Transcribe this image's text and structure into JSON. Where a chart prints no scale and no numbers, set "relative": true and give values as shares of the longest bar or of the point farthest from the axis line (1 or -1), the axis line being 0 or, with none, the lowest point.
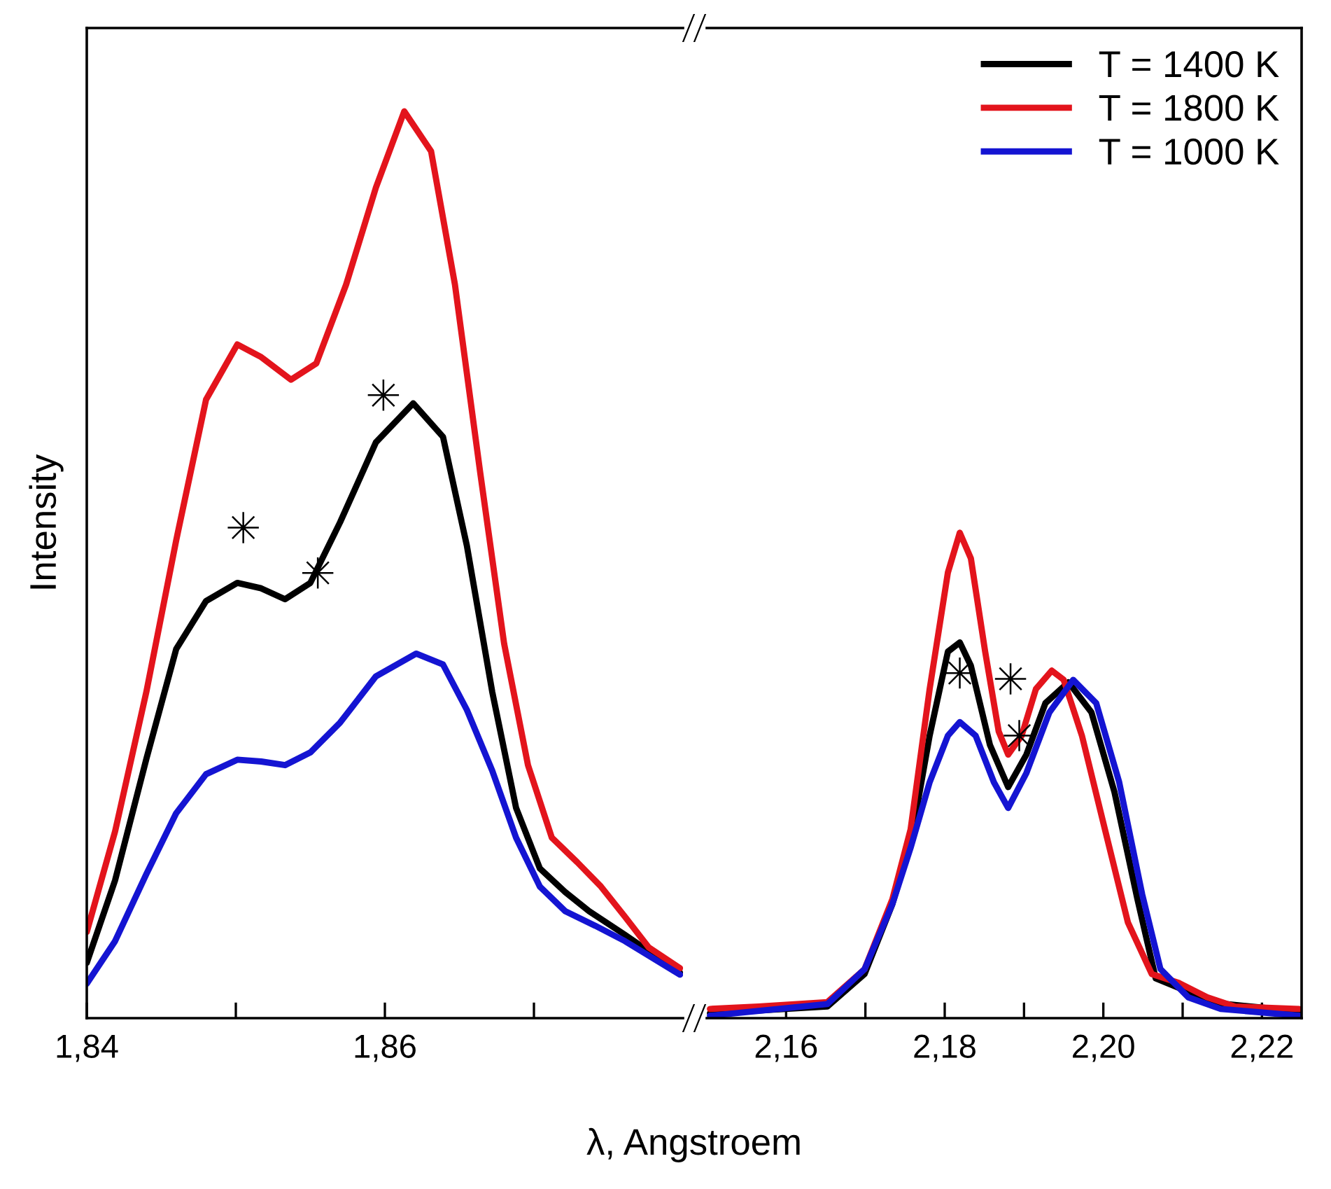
{
  "chart_data": [
    {
      "type": "line",
      "relative": true,
      "ylabel": "Intensity",
      "xlabel": "λ, Angstroem",
      "xlim": [
        1.84,
        1.88
      ],
      "xticks": [
        {
          "value": 1.84,
          "label": "1,84"
        },
        {
          "value": 1.85,
          "label": null
        },
        {
          "value": 1.86,
          "label": "1,86"
        },
        {
          "value": 1.87,
          "label": null
        }
      ],
      "line_style": "solid",
      "marker": "none",
      "series": [
        {
          "color": "#000000",
          "x": [
            1.84,
            1.8419,
            1.844,
            1.846,
            1.848,
            1.8501,
            1.8517,
            1.8533,
            1.855,
            1.857,
            1.8594,
            1.8619,
            1.8639,
            1.8655,
            1.8672,
            1.8688,
            1.8704,
            1.8721,
            1.8737,
            1.8761,
            1.8798
          ],
          "values": [
            0.061,
            0.152,
            0.286,
            0.407,
            0.46,
            0.48,
            0.474,
            0.462,
            0.48,
            0.547,
            0.635,
            0.678,
            0.641,
            0.521,
            0.36,
            0.232,
            0.165,
            0.139,
            0.118,
            0.092,
            0.05
          ]
        },
        {
          "color": "#e3141c",
          "x": [
            1.84,
            1.8419,
            1.844,
            1.846,
            1.848,
            1.8501,
            1.8517,
            1.8537,
            1.8554,
            1.8574,
            1.8594,
            1.8613,
            1.8631,
            1.8647,
            1.8664,
            1.868,
            1.8696,
            1.8712,
            1.8729,
            1.8745,
            1.8761,
            1.8777,
            1.8798
          ],
          "values": [
            0.095,
            0.206,
            0.36,
            0.527,
            0.682,
            0.743,
            0.729,
            0.704,
            0.722,
            0.809,
            0.916,
            1,
            0.956,
            0.809,
            0.601,
            0.413,
            0.279,
            0.199,
            0.172,
            0.145,
            0.112,
            0.078,
            0.055
          ]
        },
        {
          "color": "#1414d2",
          "x": [
            1.84,
            1.8419,
            1.844,
            1.846,
            1.848,
            1.8501,
            1.8517,
            1.8533,
            1.855,
            1.857,
            1.8594,
            1.8621,
            1.8639,
            1.8655,
            1.8672,
            1.8688,
            1.8704,
            1.8721,
            1.8741,
            1.8761,
            1.8798
          ],
          "values": [
            0.038,
            0.085,
            0.159,
            0.226,
            0.269,
            0.285,
            0.283,
            0.279,
            0.293,
            0.326,
            0.377,
            0.402,
            0.39,
            0.34,
            0.273,
            0.199,
            0.145,
            0.118,
            0.102,
            0.085,
            0.048
          ]
        },
        {
          "type": "scatter",
          "marker": "star",
          "color": "#000000",
          "x": [
            1.8505,
            1.8555,
            1.8599
          ],
          "values": [
            0.541,
            0.491,
            0.687
          ]
        }
      ]
    },
    {
      "type": "line",
      "relative": true,
      "xlim": [
        2.15,
        2.225
      ],
      "xticks": [
        {
          "value": 2.16,
          "label": "2,16"
        },
        {
          "value": 2.17,
          "label": null
        },
        {
          "value": 2.18,
          "label": "2,18"
        },
        {
          "value": 2.19,
          "label": null
        },
        {
          "value": 2.2,
          "label": "2,20"
        },
        {
          "value": 2.21,
          "label": null
        },
        {
          "value": 2.22,
          "label": "2,22"
        }
      ],
      "legend": "top right",
      "line_style": "solid",
      "marker": "none",
      "series": [
        {
          "name": "T = 1400 K",
          "color": "#000000",
          "x": [
            2.1504,
            2.1652,
            2.1699,
            2.1734,
            2.1757,
            2.1781,
            2.1804,
            2.1819,
            2.1833,
            2.1857,
            2.188,
            2.1903,
            2.1927,
            2.1956,
            2.1985,
            2.2014,
            2.2043,
            2.2066,
            2.2096,
            2.2131,
            2.2247
          ],
          "values": [
            0.01,
            0.024,
            0.091,
            0.235,
            0.361,
            0.582,
            0.755,
            0.774,
            0.726,
            0.563,
            0.476,
            0.543,
            0.649,
            0.692,
            0.63,
            0.466,
            0.245,
            0.082,
            0.062,
            0.033,
            0.014
          ]
        },
        {
          "name": "T = 1800 K",
          "color": "#e3141c",
          "x": [
            2.1504,
            2.1565,
            2.1652,
            2.1699,
            2.1734,
            2.1757,
            2.1781,
            2.1804,
            2.1819,
            2.1833,
            2.1851,
            2.1868,
            2.188,
            2.1897,
            2.1915,
            2.1935,
            2.195,
            2.1973,
            2.2002,
            2.2031,
            2.2061,
            2.2096,
            2.2131,
            2.2166,
            2.2247
          ],
          "values": [
            0.019,
            0.024,
            0.033,
            0.101,
            0.245,
            0.389,
            0.678,
            0.918,
            1,
            0.947,
            0.755,
            0.591,
            0.543,
            0.582,
            0.678,
            0.716,
            0.697,
            0.582,
            0.389,
            0.197,
            0.091,
            0.072,
            0.043,
            0.024,
            0.019
          ]
        },
        {
          "name": "T = 1000 K",
          "color": "#1414d2",
          "x": [
            2.1504,
            2.1652,
            2.1699,
            2.1734,
            2.1757,
            2.1781,
            2.1804,
            2.1819,
            2.1839,
            2.1862,
            2.188,
            2.1903,
            2.1932,
            2.1962,
            2.1991,
            2.202,
            2.2049,
            2.2072,
            2.2107,
            2.2148,
            2.2247
          ],
          "values": [
            0.005,
            0.029,
            0.101,
            0.235,
            0.351,
            0.486,
            0.582,
            0.61,
            0.582,
            0.486,
            0.433,
            0.505,
            0.63,
            0.697,
            0.649,
            0.486,
            0.255,
            0.101,
            0.043,
            0.019,
            0.005
          ]
        },
        {
          "type": "scatter",
          "marker": "star",
          "color": "#000000",
          "x": [
            2.1819,
            2.1883,
            2.1894
          ],
          "values": [
            0.711,
            0.699,
            0.582
          ]
        }
      ]
    }
  ]
}
